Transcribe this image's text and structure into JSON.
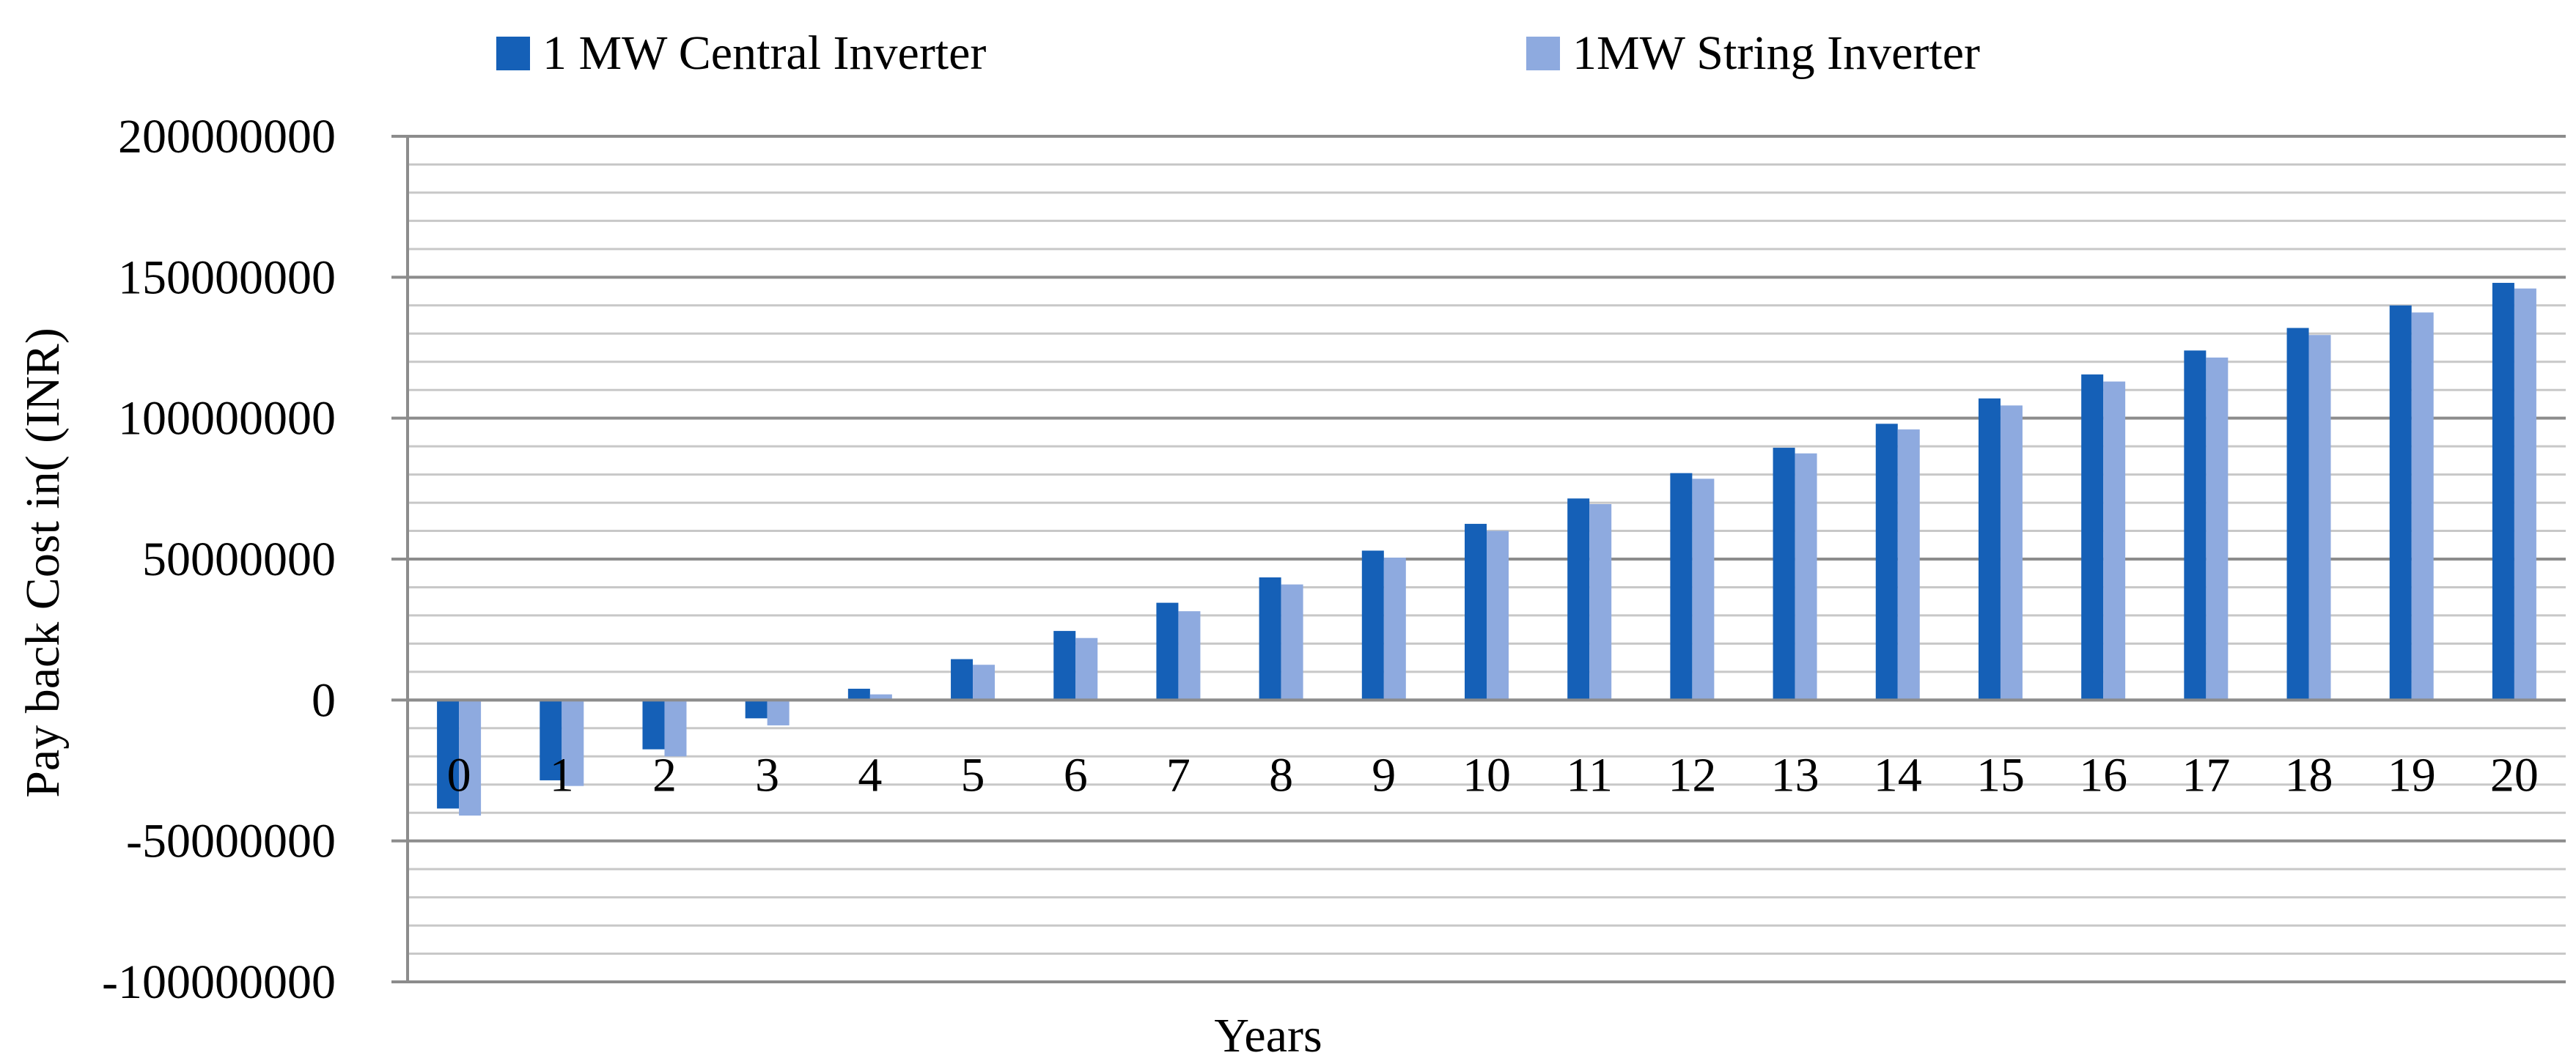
{
  "chart_data": {
    "type": "bar",
    "title": "",
    "xlabel": "Years",
    "ylabel": "Pay back Cost  in( (INR)",
    "ylim": [
      -100000000,
      200000000
    ],
    "yticks": [
      200000000,
      150000000,
      100000000,
      50000000,
      0,
      -50000000,
      -100000000
    ],
    "categories": [
      "0",
      "1",
      "2",
      "3",
      "4",
      "5",
      "6",
      "7",
      "8",
      "9",
      "10",
      "11",
      "12",
      "13",
      "14",
      "15",
      "16",
      "17",
      "18",
      "19",
      "20"
    ],
    "series": [
      {
        "name": "1 MW Central Inverter",
        "color": "#1560b7",
        "values": [
          -38500000,
          -28500000,
          -17500000,
          -6500000,
          4000000,
          14500000,
          24500000,
          34500000,
          43500000,
          53000000,
          62500000,
          71500000,
          80500000,
          89500000,
          98000000,
          107000000,
          115500000,
          124000000,
          132000000,
          140000000,
          148000000
        ]
      },
      {
        "name": "1MW String Inverter",
        "color": "#8eaadf",
        "values": [
          -41000000,
          -30500000,
          -20000000,
          -9000000,
          2000000,
          12500000,
          22000000,
          31500000,
          41000000,
          50500000,
          60000000,
          69500000,
          78500000,
          87500000,
          96000000,
          104500000,
          113000000,
          121500000,
          129500000,
          137500000,
          146000000
        ]
      }
    ],
    "grid": true,
    "legend": "top"
  }
}
